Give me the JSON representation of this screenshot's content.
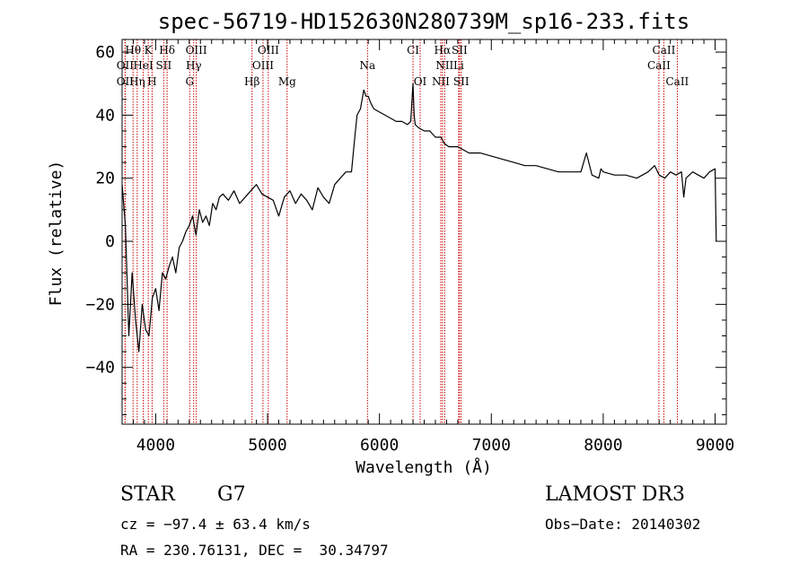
{
  "chart_data": {
    "type": "line",
    "title": "spec-56719-HD152630N280739M_sp16-233.fits",
    "xlabel": "Wavelength (Å)",
    "ylabel": "Flux (relative)",
    "xlim": [
      3700,
      9100
    ],
    "ylim": [
      -58,
      64
    ],
    "xticks": [
      4000,
      5000,
      6000,
      7000,
      8000,
      9000
    ],
    "yticks": [
      -40,
      -20,
      0,
      20,
      40,
      60
    ],
    "x": [
      3700,
      3730,
      3760,
      3790,
      3820,
      3850,
      3880,
      3910,
      3940,
      3970,
      4000,
      4030,
      4060,
      4090,
      4120,
      4150,
      4180,
      4210,
      4240,
      4270,
      4300,
      4330,
      4360,
      4390,
      4420,
      4450,
      4480,
      4510,
      4540,
      4570,
      4600,
      4650,
      4700,
      4750,
      4800,
      4850,
      4900,
      4950,
      5000,
      5050,
      5100,
      5150,
      5200,
      5250,
      5300,
      5350,
      5400,
      5450,
      5500,
      5550,
      5600,
      5650,
      5700,
      5750,
      5780,
      5800,
      5830,
      5860,
      5880,
      5900,
      5920,
      5950,
      6000,
      6050,
      6100,
      6150,
      6200,
      6250,
      6280,
      6300,
      6310,
      6320,
      6350,
      6400,
      6450,
      6500,
      6550,
      6580,
      6620,
      6700,
      6800,
      6900,
      7000,
      7100,
      7200,
      7300,
      7400,
      7500,
      7600,
      7700,
      7800,
      7850,
      7900,
      7960,
      7980,
      8000,
      8100,
      8200,
      8300,
      8400,
      8460,
      8500,
      8550,
      8600,
      8650,
      8700,
      8720,
      8740,
      8800,
      8850,
      8900,
      8950,
      9000,
      9010
    ],
    "y": [
      18,
      5,
      -30,
      -10,
      -25,
      -35,
      -20,
      -28,
      -30,
      -18,
      -15,
      -22,
      -10,
      -12,
      -8,
      -5,
      -10,
      -2,
      0,
      3,
      5,
      8,
      2,
      10,
      6,
      8,
      5,
      12,
      10,
      14,
      15,
      13,
      16,
      12,
      14,
      16,
      18,
      15,
      14,
      13,
      8,
      14,
      16,
      12,
      15,
      13,
      10,
      17,
      14,
      12,
      18,
      20,
      22,
      22,
      33,
      40,
      42,
      48,
      46,
      46,
      44,
      42,
      41,
      40,
      39,
      38,
      38,
      37,
      38,
      50,
      40,
      37,
      36,
      35,
      35,
      33,
      33,
      31,
      30,
      30,
      28,
      28,
      27,
      26,
      25,
      24,
      24,
      23,
      22,
      22,
      22,
      28,
      21,
      20,
      23,
      22,
      21,
      21,
      20,
      22,
      24,
      21,
      20,
      22,
      21,
      22,
      14,
      20,
      22,
      21,
      20,
      22,
      23,
      0
    ],
    "spectral_lines": [
      {
        "label": "Hθ",
        "x": 3798,
        "row": 0
      },
      {
        "label": "K",
        "x": 3934,
        "row": 0
      },
      {
        "label": "Hδ",
        "x": 4102,
        "row": 0
      },
      {
        "label": "OIII",
        "x": 4363,
        "row": 0
      },
      {
        "label": "OIII",
        "x": 5007,
        "row": 0
      },
      {
        "label": "CI",
        "x": 6300,
        "row": 0
      },
      {
        "label": "Hα",
        "x": 6563,
        "row": 0
      },
      {
        "label": "SII",
        "x": 6716,
        "row": 0
      },
      {
        "label": "CaII",
        "x": 8542,
        "row": 0
      },
      {
        "label": "OII",
        "x": 3727,
        "row": 1
      },
      {
        "label": "HeI",
        "x": 3889,
        "row": 1
      },
      {
        "label": "SII",
        "x": 4072,
        "row": 1
      },
      {
        "label": "Hγ",
        "x": 4340,
        "row": 1
      },
      {
        "label": "OIII",
        "x": 4959,
        "row": 1
      },
      {
        "label": "Na",
        "x": 5893,
        "row": 1
      },
      {
        "label": "NII",
        "x": 6583,
        "row": 1
      },
      {
        "label": "Li",
        "x": 6708,
        "row": 1
      },
      {
        "label": "CaII",
        "x": 8498,
        "row": 1
      },
      {
        "label": "OII",
        "x": 3727,
        "row": 2
      },
      {
        "label": "Hη",
        "x": 3835,
        "row": 2
      },
      {
        "label": "H",
        "x": 3968,
        "row": 2
      },
      {
        "label": "G",
        "x": 4304,
        "row": 2
      },
      {
        "label": "Hβ",
        "x": 4861,
        "row": 2
      },
      {
        "label": "Mg",
        "x": 5175,
        "row": 2
      },
      {
        "label": "OI",
        "x": 6364,
        "row": 2
      },
      {
        "label": "NII",
        "x": 6548,
        "row": 2
      },
      {
        "label": "SII",
        "x": 6731,
        "row": 2
      },
      {
        "label": "CaII",
        "x": 8662,
        "row": 2
      }
    ],
    "grid": false
  },
  "info": {
    "object_type": "STAR",
    "subclass": "G7",
    "survey": "LAMOST DR3",
    "cz": "cz = −97.4 ± 63.4 km/s",
    "obs_date": "Obs−Date: 20140302",
    "coords": "RA = 230.76131, DEC =  30.34797"
  },
  "colors": {
    "spectrum": "#000000",
    "line_marker": "#cc0000",
    "axes": "#000000"
  }
}
